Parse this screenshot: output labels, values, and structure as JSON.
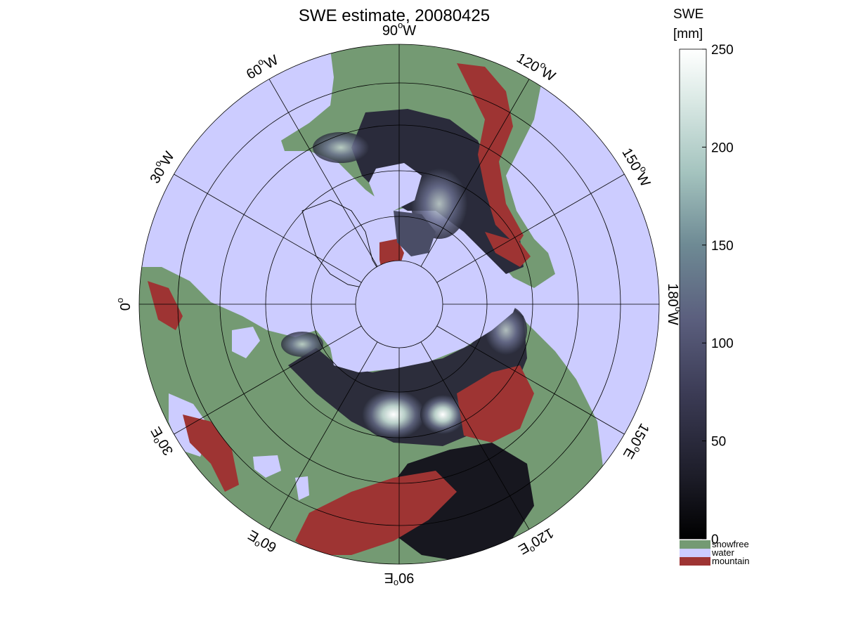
{
  "map": {
    "title": "SWE estimate, 20080425",
    "projection": "polar stereographic (north pole)",
    "lon_labels": [
      {
        "text": "90",
        "unit": "W",
        "lon": -90
      },
      {
        "text": "120",
        "unit": "W",
        "lon": -120
      },
      {
        "text": "150",
        "unit": "W",
        "lon": -150
      },
      {
        "text": "180",
        "unit": "W",
        "lon": 180
      },
      {
        "text": "150",
        "unit": "E",
        "lon": 150
      },
      {
        "text": "120",
        "unit": "E",
        "lon": 120
      },
      {
        "text": "90",
        "unit": "E",
        "lon": 90
      },
      {
        "text": "60",
        "unit": "E",
        "lon": 60
      },
      {
        "text": "30",
        "unit": "E",
        "lon": 30
      },
      {
        "text": "0",
        "unit": "",
        "lon": 0
      },
      {
        "text": "30",
        "unit": "W",
        "lon": -30
      },
      {
        "text": "60",
        "unit": "W",
        "lon": -60
      }
    ],
    "colors": {
      "water": "#ccccff",
      "snowfree": "#749a73",
      "mountain": "#9e3433",
      "swe_low": "#0d0d12",
      "swe_high": "#ffffff"
    }
  },
  "colorbar": {
    "title_line1": "SWE",
    "title_line2": "[mm]",
    "ticks": [
      "0",
      "50",
      "100",
      "150",
      "200",
      "250"
    ],
    "range": [
      0,
      250
    ],
    "categories": [
      {
        "label": "snowfree",
        "color": "#749a73"
      },
      {
        "label": "water",
        "color": "#ccccff"
      },
      {
        "label": "mountain",
        "color": "#9e3433"
      }
    ]
  }
}
